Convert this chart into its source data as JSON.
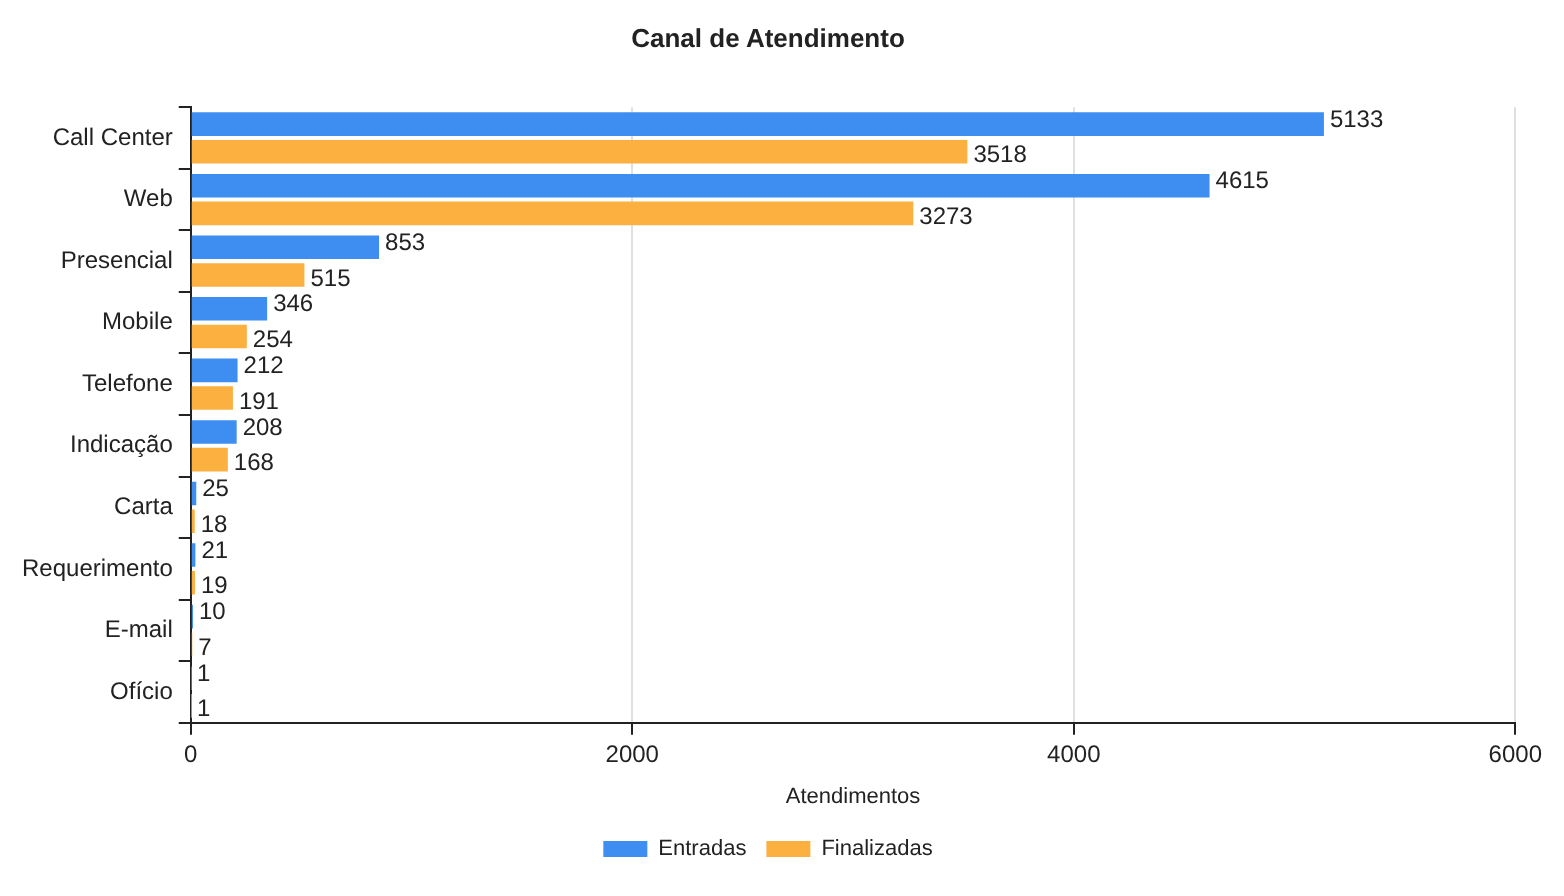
{
  "chart_data": {
    "type": "bar",
    "orientation": "horizontal",
    "title": "Canal de Atendimento",
    "xlabel": "Atendimentos",
    "categories": [
      "Call Center",
      "Web",
      "Presencial",
      "Mobile",
      "Telefone",
      "Indicação",
      "Carta",
      "Requerimento",
      "E-mail",
      "Ofício"
    ],
    "series": [
      {
        "name": "Entradas",
        "color": "#3d8ef0",
        "values": [
          5133,
          4615,
          853,
          346,
          212,
          208,
          25,
          21,
          10,
          1
        ]
      },
      {
        "name": "Finalizadas",
        "color": "#fbb040",
        "values": [
          3518,
          3273,
          515,
          254,
          191,
          168,
          18,
          19,
          7,
          1
        ]
      }
    ],
    "xlim": [
      0,
      6000
    ],
    "xticks": [
      0,
      2000,
      4000,
      6000
    ],
    "grid": "x",
    "legend": "bottom",
    "data_labels": true
  }
}
